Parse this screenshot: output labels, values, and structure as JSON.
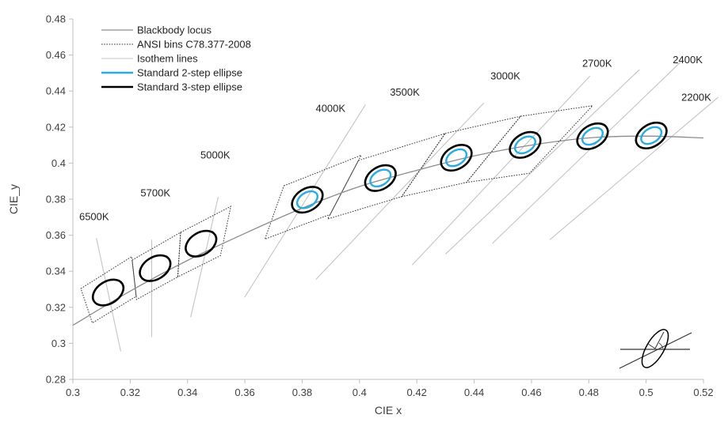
{
  "colors": {
    "locus": "#8c8c8c",
    "isotherm": "#c4c4c4",
    "bins": "#333333",
    "two_step": "#29abe2",
    "three_step": "#000000",
    "axis": "#bfbfbf"
  },
  "chart_data": {
    "type": "scatter",
    "title": "",
    "xlabel": "CIE x",
    "ylabel": "CIE_y",
    "xlim": [
      0.3,
      0.52
    ],
    "ylim": [
      0.28,
      0.48
    ],
    "x_ticks": [
      0.3,
      0.32,
      0.34,
      0.36,
      0.38,
      0.4,
      0.42,
      0.44,
      0.46,
      0.48,
      0.5,
      0.52
    ],
    "y_ticks": [
      0.28,
      0.3,
      0.32,
      0.34,
      0.36,
      0.38,
      0.4,
      0.42,
      0.44,
      0.46,
      0.48
    ],
    "x_tick_labels": [
      "0.3",
      "0.32",
      "0.34",
      "0.36",
      "0.38",
      "0.4",
      "0.42",
      "0.44",
      "0.46",
      "0.48",
      "0.5",
      "0.52"
    ],
    "y_tick_labels": [
      "0.28",
      "0.3",
      "0.32",
      "0.34",
      "0.36",
      "0.38",
      "0.4",
      "0.42",
      "0.44",
      "0.46",
      "0.48"
    ],
    "grid": false,
    "legend": {
      "placement": "top-left",
      "entries": [
        {
          "label": "Blackbody locus",
          "style": "locus"
        },
        {
          "label": "ANSI bins C78.377-2008",
          "style": "bins"
        },
        {
          "label": "Isothem lines",
          "style": "isotherm"
        },
        {
          "label": "Standard 2-step ellipse",
          "style": "two_step"
        },
        {
          "label": "Standard 3-step ellipse",
          "style": "three_step"
        }
      ]
    },
    "blackbody_locus": [
      [
        0.3,
        0.31
      ],
      [
        0.32,
        0.329
      ],
      [
        0.34,
        0.346
      ],
      [
        0.36,
        0.361
      ],
      [
        0.38,
        0.375
      ],
      [
        0.4,
        0.387
      ],
      [
        0.42,
        0.396
      ],
      [
        0.44,
        0.404
      ],
      [
        0.46,
        0.41
      ],
      [
        0.48,
        0.414
      ],
      [
        0.5,
        0.415
      ],
      [
        0.52,
        0.414
      ]
    ],
    "ansi_bins": [
      {
        "corners": [
          [
            0.3028,
            0.3304
          ],
          [
            0.3205,
            0.3481
          ],
          [
            0.3221,
            0.3261
          ],
          [
            0.3068,
            0.3113
          ]
        ]
      },
      {
        "corners": [
          [
            0.3207,
            0.3462
          ],
          [
            0.3376,
            0.3616
          ],
          [
            0.3366,
            0.3369
          ],
          [
            0.3222,
            0.3243
          ]
        ]
      },
      {
        "corners": [
          [
            0.3376,
            0.3616
          ],
          [
            0.3551,
            0.376
          ],
          [
            0.3515,
            0.3487
          ],
          [
            0.3366,
            0.3369
          ]
        ]
      },
      {
        "corners": [
          [
            0.3736,
            0.3874
          ],
          [
            0.4006,
            0.4044
          ],
          [
            0.3898,
            0.3716
          ],
          [
            0.367,
            0.3578
          ]
        ]
      },
      {
        "corners": [
          [
            0.3996,
            0.4015
          ],
          [
            0.4299,
            0.4165
          ],
          [
            0.4147,
            0.3814
          ],
          [
            0.3889,
            0.369
          ]
        ]
      },
      {
        "corners": [
          [
            0.4299,
            0.4165
          ],
          [
            0.4562,
            0.426
          ],
          [
            0.4373,
            0.3893
          ],
          [
            0.4147,
            0.3814
          ]
        ]
      },
      {
        "corners": [
          [
            0.4562,
            0.426
          ],
          [
            0.4813,
            0.4319
          ],
          [
            0.4593,
            0.3944
          ],
          [
            0.4373,
            0.3893
          ]
        ]
      }
    ],
    "isotherm_lines": [
      {
        "cct": "6500K",
        "from": [
          0.3082,
          0.3584
        ],
        "to": [
          0.3167,
          0.2955
        ]
      },
      {
        "cct": "5700K",
        "from": [
          0.3275,
          0.3575
        ],
        "to": [
          0.3275,
          0.3035
        ]
      },
      {
        "cct": "5000K",
        "from": [
          0.3507,
          0.3812
        ],
        "to": [
          0.3411,
          0.3145
        ]
      },
      {
        "cct": "4000K",
        "from": [
          0.4021,
          0.4325
        ],
        "to": [
          0.3599,
          0.3255
        ]
      },
      {
        "cct": "3500K",
        "from": [
          0.4434,
          0.4334
        ],
        "to": [
          0.3848,
          0.3355
        ]
      },
      {
        "cct": "3000K",
        "from": [
          0.4804,
          0.4483
        ],
        "to": [
          0.4184,
          0.3435
        ]
      },
      {
        "cct": "2700K",
        "from": [
          0.4977,
          0.4519
        ],
        "to": [
          0.43,
          0.3495
        ]
      },
      {
        "cct": "2400K",
        "from": [
          0.5123,
          0.4565
        ],
        "to": [
          0.4464,
          0.3555
        ]
      },
      {
        "cct": "2200K",
        "from": [
          0.5251,
          0.4365
        ],
        "to": [
          0.4664,
          0.3575
        ]
      }
    ],
    "cct_labels": [
      {
        "text": "6500K",
        "x": 0.3074,
        "y": 0.3684
      },
      {
        "text": "5700K",
        "x": 0.3288,
        "y": 0.3815
      },
      {
        "text": "5000K",
        "x": 0.3497,
        "y": 0.4025
      },
      {
        "text": "4000K",
        "x": 0.3899,
        "y": 0.4285
      },
      {
        "text": "3500K",
        "x": 0.4158,
        "y": 0.4375
      },
      {
        "text": "3000K",
        "x": 0.4509,
        "y": 0.4465
      },
      {
        "text": "2700K",
        "x": 0.4829,
        "y": 0.4535
      },
      {
        "text": "2400K",
        "x": 0.5145,
        "y": 0.4555
      },
      {
        "text": "2200K",
        "x": 0.5175,
        "y": 0.4345
      }
    ],
    "ellipses": [
      {
        "cct": "6500K",
        "cx": 0.3123,
        "cy": 0.3282,
        "three_step": true,
        "two_step": false
      },
      {
        "cct": "5700K",
        "cx": 0.3287,
        "cy": 0.3417,
        "three_step": true,
        "two_step": false
      },
      {
        "cct": "5000K",
        "cx": 0.3447,
        "cy": 0.3553,
        "three_step": true,
        "two_step": false
      },
      {
        "cct": "4000K",
        "cx": 0.3818,
        "cy": 0.3797,
        "three_step": true,
        "two_step": true
      },
      {
        "cct": "3500K",
        "cx": 0.4073,
        "cy": 0.3917,
        "three_step": true,
        "two_step": true
      },
      {
        "cct": "3000K",
        "cx": 0.4338,
        "cy": 0.403,
        "three_step": true,
        "two_step": true
      },
      {
        "cct": "2700K",
        "cx": 0.4578,
        "cy": 0.4101,
        "three_step": true,
        "two_step": true
      },
      {
        "cct": "2400K",
        "cx": 0.4813,
        "cy": 0.4149,
        "three_step": true,
        "two_step": true
      },
      {
        "cct": "2200K",
        "cx": 0.5018,
        "cy": 0.4153,
        "three_step": true,
        "two_step": true
      }
    ]
  }
}
